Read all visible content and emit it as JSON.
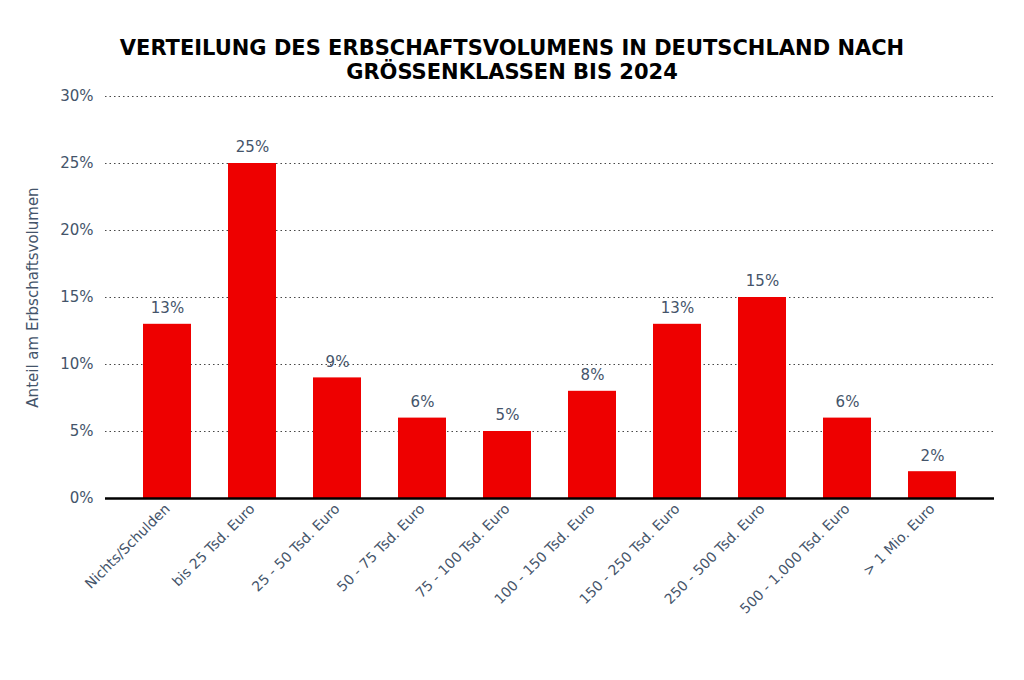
{
  "chart_data": {
    "type": "bar",
    "title": "VERTEILUNG DES ERBSCHAFTSVOLUMENS IN DEUTSCHLAND NACH GRÖSSENKLASSEN BIS 2024",
    "y_label": "Anteil am Erbschaftsvolumen",
    "categories": [
      "Nichts/Schulden",
      "bis 25 Tsd. Euro",
      "25 - 50 Tsd. Euro",
      "50 - 75 Tsd. Euro",
      "75 - 100 Tsd. Euro",
      "100 - 150 Tsd. Euro",
      "150 - 250 Tsd. Euro",
      "250 - 500 Tsd. Euro",
      "500 - 1.000 Tsd. Euro",
      "> 1 Mio. Euro"
    ],
    "values": [
      13,
      25,
      9,
      6,
      5,
      8,
      13,
      15,
      6,
      2
    ],
    "value_labels": [
      "13%",
      "25%",
      "9%",
      "6%",
      "5%",
      "8%",
      "13%",
      "15%",
      "6%",
      "2%"
    ],
    "color": "#ee0000",
    "ylim": [
      0,
      30
    ],
    "yticks": [
      {
        "value": 0,
        "label": "0%"
      },
      {
        "value": 5,
        "label": "5%"
      },
      {
        "value": 10,
        "label": "10%"
      },
      {
        "value": 15,
        "label": "15%"
      },
      {
        "value": 20,
        "label": "20%"
      },
      {
        "value": 25,
        "label": "25%"
      },
      {
        "value": 30,
        "label": "30%"
      }
    ],
    "grid": true,
    "data_labels": true
  }
}
